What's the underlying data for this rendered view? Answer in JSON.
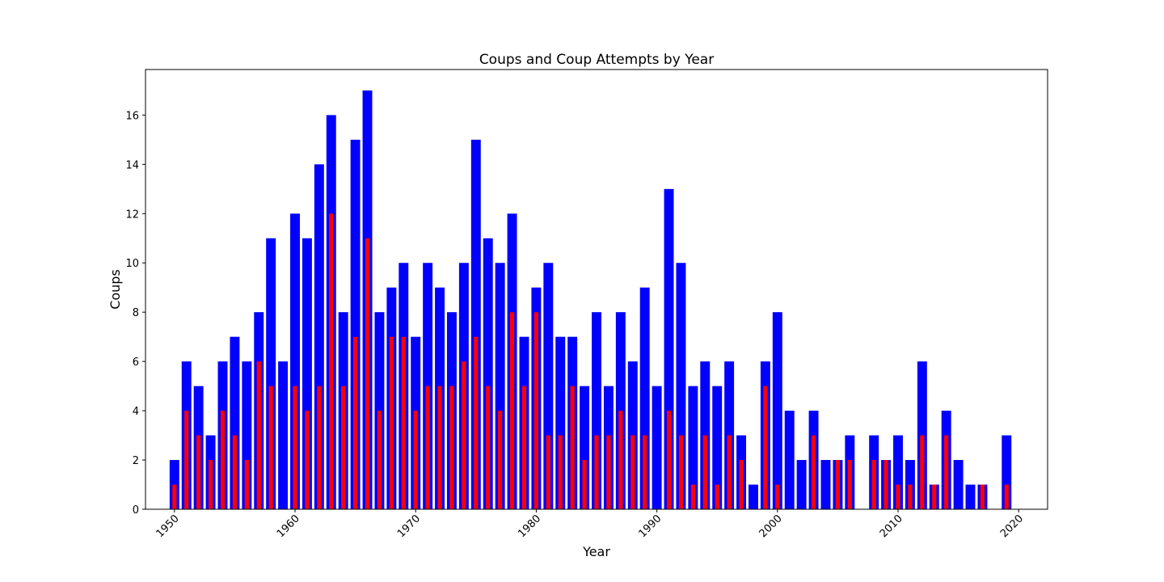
{
  "chart_data": {
    "type": "bar",
    "title": "Coups and Coup Attempts by Year",
    "xlabel": "Year",
    "ylabel": "Coups",
    "xlim": [
      1947.6,
      2022.4
    ],
    "ylim": [
      0,
      17.85
    ],
    "xticks": [
      1950,
      1960,
      1970,
      1980,
      1990,
      2000,
      2010,
      2020
    ],
    "yticks": [
      0,
      2,
      4,
      6,
      8,
      10,
      12,
      14,
      16
    ],
    "grid": false,
    "x": [
      1950,
      1951,
      1952,
      1953,
      1954,
      1955,
      1956,
      1957,
      1958,
      1959,
      1960,
      1961,
      1962,
      1963,
      1964,
      1965,
      1966,
      1967,
      1968,
      1969,
      1970,
      1971,
      1972,
      1973,
      1974,
      1975,
      1976,
      1977,
      1978,
      1979,
      1980,
      1981,
      1982,
      1983,
      1984,
      1985,
      1986,
      1987,
      1988,
      1989,
      1990,
      1991,
      1992,
      1993,
      1994,
      1995,
      1996,
      1997,
      1998,
      1999,
      2000,
      2001,
      2002,
      2003,
      2004,
      2005,
      2006,
      2007,
      2008,
      2009,
      2010,
      2011,
      2012,
      2013,
      2014,
      2015,
      2016,
      2017,
      2018,
      2019
    ],
    "series": [
      {
        "color": "#0000ff",
        "values": [
          2,
          6,
          5,
          3,
          6,
          7,
          6,
          8,
          11,
          6,
          12,
          11,
          14,
          16,
          8,
          15,
          17,
          8,
          9,
          10,
          7,
          10,
          9,
          8,
          10,
          15,
          11,
          10,
          12,
          7,
          9,
          10,
          7,
          7,
          5,
          8,
          5,
          8,
          6,
          9,
          5,
          13,
          10,
          5,
          6,
          5,
          6,
          3,
          1,
          6,
          8,
          4,
          2,
          4,
          2,
          2,
          3,
          0,
          3,
          2,
          3,
          2,
          6,
          1,
          4,
          2,
          1,
          1,
          0,
          3
        ]
      },
      {
        "color": "#ff0000",
        "values": [
          1,
          4,
          3,
          2,
          4,
          3,
          2,
          6,
          5,
          0,
          5,
          4,
          5,
          12,
          5,
          7,
          11,
          4,
          7,
          7,
          4,
          5,
          5,
          5,
          6,
          7,
          5,
          4,
          8,
          5,
          8,
          3,
          3,
          5,
          2,
          3,
          3,
          4,
          3,
          3,
          0,
          4,
          3,
          1,
          3,
          1,
          3,
          2,
          0,
          5,
          1,
          0,
          0,
          3,
          0,
          2,
          2,
          0,
          2,
          2,
          1,
          1,
          3,
          1,
          3,
          0,
          0,
          1,
          0,
          1
        ]
      }
    ]
  }
}
